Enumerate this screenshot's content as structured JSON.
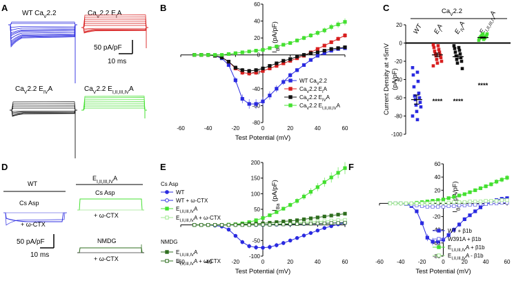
{
  "panels": {
    "A": {
      "label": "A",
      "trace_labels": [
        "WT Ca<sub>V</sub>2.2",
        "Ca<sub>V</sub>2.2 E<sub>I</sub>A",
        "Ca<sub>V</sub>2.2 E<sub>IV</sub>A",
        "Ca<sub>V</sub>2.2 E<sub>I,II,III,IV</sub>A"
      ],
      "scale_current": "50 pA/pF",
      "scale_time": "10 ms"
    },
    "B": {
      "label": "B"
    },
    "C": {
      "label": "C"
    },
    "D": {
      "label": "D",
      "wt_title": "WT",
      "mut_title": "E<sub>I,II,III,IV</sub>A",
      "cs_asp": "Cs Asp",
      "ctx": "+ ω-CTX",
      "nmdg": "NMDG",
      "scale_current": "50 pA/pF",
      "scale_time": "10 ms"
    },
    "E": {
      "label": "E",
      "group_cs": "Cs Asp",
      "group_nmdg": "NMDG"
    },
    "F": {
      "label": "F"
    }
  },
  "colors": {
    "wt": "#2a2ae0",
    "e1a": "#d81f1f",
    "e4a": "#111111",
    "all": "#44e030",
    "dkgreen": "#2e6e1e",
    "ltblue": "#7070e8",
    "ltgreen": "#a0e890"
  },
  "chart_data": [
    {
      "panel": "B",
      "type": "line",
      "xlabel": "Test Potential (mV)",
      "ylabel": "I<tspan baseline-shift='sub' font-size='7'>Ba</tspan> (pA/pF)",
      "xlim": [
        -60,
        60
      ],
      "ylim": [
        -80,
        60
      ],
      "xticks": [
        -60,
        -40,
        -20,
        0,
        20,
        40,
        60
      ],
      "yticks": [
        -80,
        -60,
        -40,
        -20,
        0,
        20,
        40,
        60
      ],
      "x": [
        -50,
        -45,
        -40,
        -35,
        -30,
        -25,
        -20,
        -15,
        -10,
        -5,
        0,
        5,
        10,
        15,
        20,
        25,
        30,
        35,
        40,
        45,
        50,
        55,
        60
      ],
      "series": [
        {
          "name": "WT Ca<tspan baseline-shift='sub' font-size='6'>V</tspan>2.2",
          "color": "#2a2ae0",
          "marker": "square",
          "values": [
            0,
            0,
            0,
            -1,
            -4,
            -12,
            -30,
            -52,
            -58,
            -58,
            -55,
            -48,
            -40,
            -32,
            -24,
            -18,
            -12,
            -6,
            -1,
            2,
            5,
            7,
            8
          ]
        },
        {
          "name": "Ca<tspan baseline-shift='sub' font-size='6'>V</tspan>2.2 E<tspan baseline-shift='sub' font-size='6'>I</tspan>A",
          "color": "#d81f1f",
          "marker": "square",
          "values": [
            0,
            0,
            0,
            -1,
            -3,
            -8,
            -16,
            -21,
            -22,
            -21,
            -19,
            -16,
            -13,
            -10,
            -7,
            -4,
            -1,
            3,
            7,
            11,
            15,
            19,
            23
          ]
        },
        {
          "name": "Ca<tspan baseline-shift='sub' font-size='6'>V</tspan>2.2 E<tspan baseline-shift='sub' font-size='6'>IV</tspan>A",
          "color": "#111111",
          "marker": "square",
          "values": [
            0,
            0,
            0,
            -1,
            -3,
            -8,
            -15,
            -18,
            -19,
            -18,
            -16,
            -13,
            -10,
            -7,
            -5,
            -2,
            0,
            2,
            3,
            5,
            7,
            8,
            9
          ]
        },
        {
          "name": "Ca<tspan baseline-shift='sub' font-size='6'>V</tspan>2.2 E<tspan baseline-shift='sub' font-size='6'>I,II,III,IV</tspan>A",
          "color": "#44e030",
          "marker": "square",
          "values": [
            0,
            0,
            0,
            0,
            0,
            1,
            2,
            3,
            4,
            5,
            6,
            8,
            10,
            12,
            14,
            17,
            20,
            23,
            26,
            29,
            33,
            36,
            39
          ]
        }
      ]
    },
    {
      "panel": "C",
      "type": "scatter",
      "title": "Ca<tspan baseline-shift='sub' font-size='7'>V</tspan>2.2",
      "ylabel": "Current Density at +5mV",
      "ylabel2": "(pA/pF)",
      "ylim": [
        -100,
        20
      ],
      "yticks": [
        -100,
        -80,
        -60,
        -40,
        -20,
        0,
        20
      ],
      "categories": [
        "WT",
        "E<tspan baseline-shift='sub' font-size='7'>I</tspan>A",
        "E<tspan baseline-shift='sub' font-size='7'>IV</tspan>A",
        "E<tspan baseline-shift='sub' font-size='7'>I,II,III,IV</tspan>A"
      ],
      "colors": [
        "#2a2ae0",
        "#d81f1f",
        "#111111",
        "#44e030"
      ],
      "points": [
        [
          -27,
          -32,
          -35,
          -42,
          -48,
          -55,
          -58,
          -60,
          -62,
          -65,
          -68,
          -70,
          -75,
          -80,
          -84
        ],
        [
          -2,
          -3,
          -5,
          -7,
          -9,
          -10,
          -12,
          -13,
          -14,
          -16,
          -18,
          -20,
          -22,
          -25
        ],
        [
          -3,
          -5,
          -6,
          -8,
          -10,
          -12,
          -14,
          -16,
          -18,
          -20,
          -22,
          -28
        ],
        [
          3,
          4,
          5,
          5,
          6,
          6,
          7,
          7,
          8,
          8,
          9,
          10,
          10
        ]
      ],
      "means": [
        -62,
        -13,
        -15,
        6
      ],
      "sem": [
        5,
        2,
        2,
        0.6
      ],
      "significance": [
        "",
        "****",
        "****",
        "****"
      ]
    },
    {
      "panel": "E",
      "type": "line",
      "xlabel": "Test Potential (mV)",
      "ylabel": "I<tspan baseline-shift='sub' font-size='7'>Ba</tspan> (pA/pF)",
      "xlim": [
        -60,
        60
      ],
      "ylim": [
        -100,
        200
      ],
      "xticks": [
        -60,
        -40,
        -20,
        0,
        20,
        40,
        60
      ],
      "yticks": [
        -100,
        -50,
        0,
        50,
        100,
        150,
        200
      ],
      "x": [
        -50,
        -45,
        -40,
        -35,
        -30,
        -25,
        -20,
        -15,
        -10,
        -5,
        0,
        5,
        10,
        15,
        20,
        25,
        30,
        35,
        40,
        45,
        50,
        55,
        60
      ],
      "series": [
        {
          "name": "WT",
          "color": "#2a2ae0",
          "marker": "circle",
          "fill": true,
          "values": [
            0,
            0,
            0,
            -2,
            -5,
            -15,
            -35,
            -55,
            -68,
            -72,
            -73,
            -71,
            -65,
            -58,
            -50,
            -42,
            -34,
            -26,
            -18,
            -10,
            -4,
            2,
            6
          ]
        },
        {
          "name": "WT + ω-CTX",
          "color": "#2a2ae0",
          "marker": "circle",
          "fill": false,
          "values": [
            0,
            0,
            0,
            0,
            0,
            0,
            0,
            0,
            0,
            0,
            0,
            1,
            1,
            2,
            2,
            3,
            3,
            4,
            4,
            5,
            6,
            7,
            8
          ]
        },
        {
          "name": "E<tspan baseline-shift='sub' font-size='6'>I,II,III,IV</tspan>A",
          "color": "#44e030",
          "marker": "square",
          "fill": true,
          "values": [
            0,
            0,
            0,
            0,
            0,
            1,
            2,
            5,
            9,
            15,
            22,
            31,
            41,
            52,
            64,
            77,
            91,
            106,
            121,
            137,
            152,
            167,
            182
          ]
        },
        {
          "name": "E<tspan baseline-shift='sub' font-size='6'>I,II,III,IV</tspan>A + ω-CTX",
          "color": "#a0e890",
          "marker": "square",
          "fill": false,
          "values": [
            0,
            0,
            0,
            0,
            0,
            0,
            0,
            0,
            0,
            1,
            1,
            2,
            3,
            4,
            5,
            6,
            8,
            9,
            11,
            12,
            14,
            15,
            16
          ]
        },
        {
          "name": "E<tspan baseline-shift='sub' font-size='6'>I,II,III,IV</tspan>A",
          "color": "#2e6e1e",
          "marker": "square",
          "fill": true,
          "group": "NMDG",
          "values": [
            0,
            0,
            0,
            0,
            0,
            0,
            1,
            2,
            3,
            4,
            5,
            7,
            9,
            11,
            13,
            15,
            18,
            21,
            24,
            27,
            30,
            33,
            36
          ]
        },
        {
          "name": "E<tspan baseline-shift='sub' font-size='6'>I,II,III,IV</tspan>A + ω-CTX",
          "color": "#2e6e1e",
          "marker": "square",
          "fill": false,
          "group": "NMDG",
          "values": [
            0,
            0,
            0,
            0,
            0,
            0,
            0,
            0,
            0,
            1,
            1,
            1,
            2,
            2,
            3,
            3,
            4,
            4,
            5,
            5,
            6,
            6,
            7
          ]
        }
      ]
    },
    {
      "panel": "F",
      "type": "line",
      "xlabel": "Test Potential (mV)",
      "ylabel": "I<tspan baseline-shift='sub' font-size='7'>Ba</tspan> (pA/pF)",
      "xlim": [
        -60,
        60
      ],
      "ylim": [
        -80,
        60
      ],
      "xticks": [
        -60,
        -40,
        -20,
        0,
        20,
        40,
        60
      ],
      "yticks": [
        -80,
        -60,
        -40,
        -20,
        0,
        20,
        40,
        60
      ],
      "x": [
        -50,
        -45,
        -40,
        -35,
        -30,
        -25,
        -20,
        -15,
        -10,
        -5,
        0,
        5,
        10,
        15,
        20,
        25,
        30,
        35,
        40,
        45,
        50,
        55,
        60
      ],
      "series": [
        {
          "name": "WT + β1b",
          "color": "#2a2ae0",
          "marker": "square",
          "fill": true,
          "values": [
            0,
            0,
            0,
            -1,
            -4,
            -12,
            -30,
            -52,
            -58,
            -58,
            -55,
            -48,
            -40,
            -32,
            -24,
            -18,
            -12,
            -6,
            -1,
            2,
            5,
            7,
            8
          ]
        },
        {
          "name": "W391A + β1b",
          "color": "#7070e8",
          "marker": "square",
          "fill": false,
          "values": [
            0,
            0,
            0,
            -1,
            -2,
            -3,
            -4,
            -5,
            -5,
            -5,
            -5,
            -4,
            -4,
            -3,
            -3,
            -2,
            -2,
            -1,
            -1,
            0,
            0,
            1,
            1
          ]
        },
        {
          "name": "E<tspan baseline-shift='sub' font-size='6'>I,II,III,IV</tspan>A + β1b",
          "color": "#44e030",
          "marker": "square",
          "fill": true,
          "values": [
            0,
            0,
            0,
            0,
            0,
            1,
            2,
            3,
            4,
            5,
            6,
            8,
            10,
            12,
            14,
            17,
            20,
            23,
            26,
            29,
            33,
            36,
            39
          ]
        },
        {
          "name": "E<tspan baseline-shift='sub' font-size='6'>I,II,III,IV</tspan>A - β1b",
          "color": "#a0e890",
          "marker": "square",
          "fill": false,
          "values": [
            0,
            0,
            0,
            0,
            0,
            0,
            0,
            0,
            1,
            1,
            1,
            1,
            2,
            2,
            2,
            3,
            3,
            3,
            4,
            4,
            4,
            5,
            5
          ]
        }
      ]
    }
  ]
}
